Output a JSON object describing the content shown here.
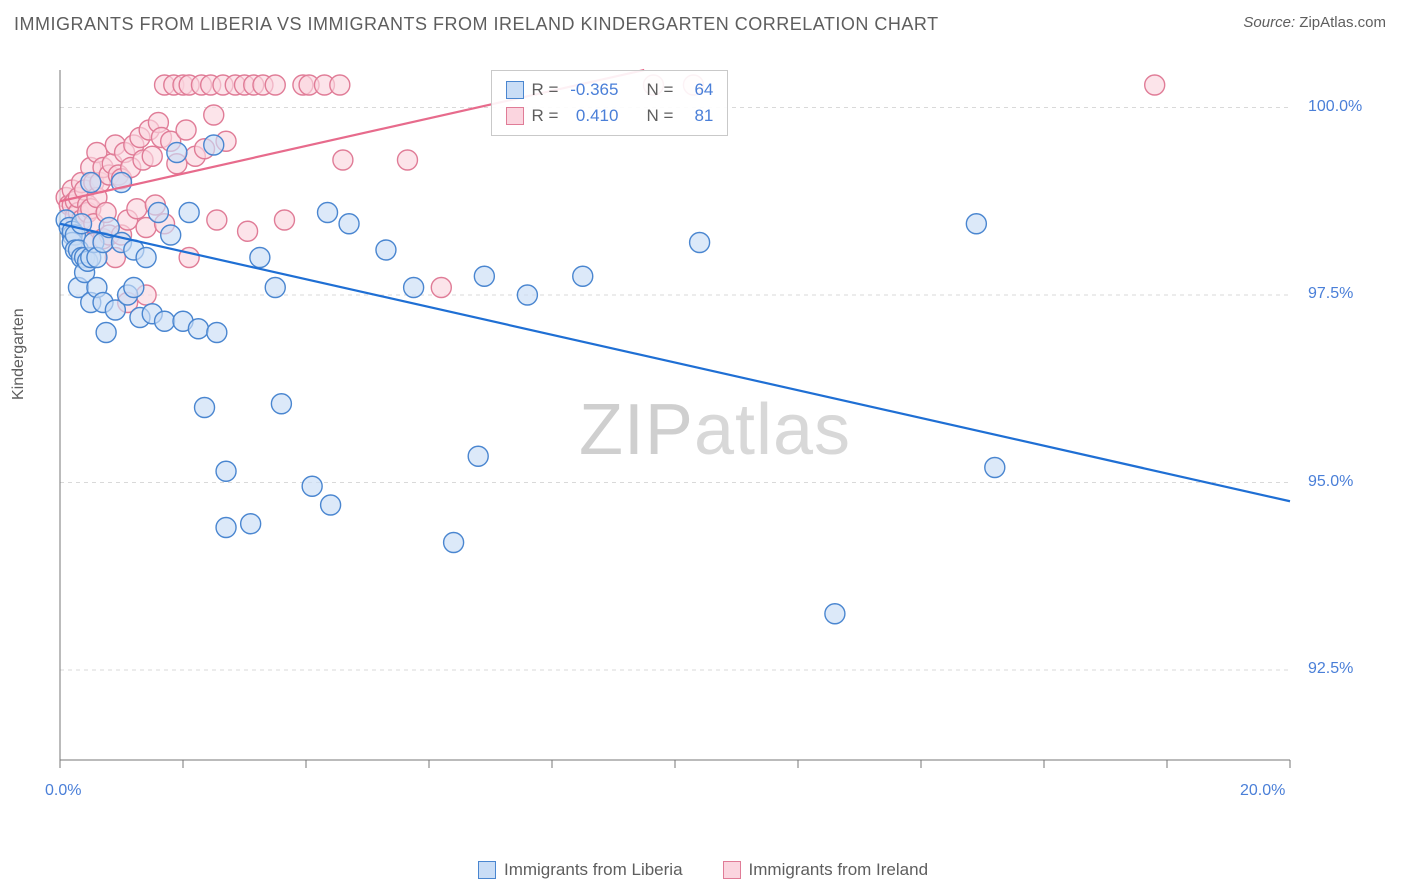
{
  "title": "IMMIGRANTS FROM LIBERIA VS IMMIGRANTS FROM IRELAND KINDERGARTEN CORRELATION CHART",
  "source_label": "Source:",
  "source_name": "ZipAtlas.com",
  "y_axis_label": "Kindergarten",
  "watermark": {
    "part1": "ZIP",
    "part2": "atlas"
  },
  "chart": {
    "type": "scatter",
    "background_color": "#ffffff",
    "grid_color": "#d9d9d9",
    "axis_color": "#777777",
    "tick_color": "#777777",
    "xlim": [
      0.0,
      20.0
    ],
    "ylim": [
      91.3,
      100.5
    ],
    "x_ticks": [
      0.0,
      2.0,
      4.0,
      6.0,
      8.0,
      10.0,
      12.0,
      14.0,
      16.0,
      18.0,
      20.0
    ],
    "x_tick_labels": {
      "0": "0.0%",
      "10": "20.0%"
    },
    "y_ticks": [
      92.5,
      95.0,
      97.5,
      100.0
    ],
    "y_tick_labels": [
      "92.5%",
      "95.0%",
      "97.5%",
      "100.0%"
    ],
    "marker_radius": 10,
    "marker_stroke_width": 1.4,
    "line_width": 2.2,
    "series": [
      {
        "name": "Immigrants from Liberia",
        "label": "Immigrants from Liberia",
        "color_fill": "#c9ddf6",
        "color_stroke": "#4a86d0",
        "line_color": "#1f6fd4",
        "R": "-0.365",
        "N": "64",
        "trend": {
          "x1": 0.0,
          "y1": 98.45,
          "x2": 20.0,
          "y2": 94.75
        },
        "points": [
          [
            0.1,
            98.5
          ],
          [
            0.15,
            98.4
          ],
          [
            0.2,
            98.3
          ],
          [
            0.2,
            98.35
          ],
          [
            0.2,
            98.2
          ],
          [
            0.25,
            98.3
          ],
          [
            0.25,
            98.1
          ],
          [
            0.3,
            98.1
          ],
          [
            0.3,
            97.6
          ],
          [
            0.35,
            98.45
          ],
          [
            0.35,
            98.0
          ],
          [
            0.4,
            98.0
          ],
          [
            0.4,
            97.8
          ],
          [
            0.45,
            97.95
          ],
          [
            0.5,
            99.0
          ],
          [
            0.5,
            98.0
          ],
          [
            0.5,
            97.4
          ],
          [
            0.55,
            98.2
          ],
          [
            0.6,
            97.6
          ],
          [
            0.6,
            98.0
          ],
          [
            0.7,
            98.2
          ],
          [
            0.7,
            97.4
          ],
          [
            0.75,
            97.0
          ],
          [
            0.8,
            98.4
          ],
          [
            0.9,
            97.3
          ],
          [
            1.0,
            98.2
          ],
          [
            1.0,
            99.0
          ],
          [
            1.1,
            97.5
          ],
          [
            1.2,
            98.1
          ],
          [
            1.2,
            97.6
          ],
          [
            1.3,
            97.2
          ],
          [
            1.4,
            98.0
          ],
          [
            1.5,
            97.25
          ],
          [
            1.6,
            98.6
          ],
          [
            1.7,
            97.15
          ],
          [
            1.8,
            98.3
          ],
          [
            1.9,
            99.4
          ],
          [
            2.0,
            97.15
          ],
          [
            2.1,
            98.6
          ],
          [
            2.25,
            97.05
          ],
          [
            2.35,
            96.0
          ],
          [
            2.5,
            99.5
          ],
          [
            2.55,
            97.0
          ],
          [
            2.7,
            94.4
          ],
          [
            2.7,
            95.15
          ],
          [
            3.1,
            94.45
          ],
          [
            3.25,
            98.0
          ],
          [
            3.5,
            97.6
          ],
          [
            3.6,
            96.05
          ],
          [
            4.1,
            94.95
          ],
          [
            4.35,
            98.6
          ],
          [
            4.4,
            94.7
          ],
          [
            4.7,
            98.45
          ],
          [
            5.3,
            98.1
          ],
          [
            5.75,
            97.6
          ],
          [
            6.4,
            94.2
          ],
          [
            6.8,
            95.35
          ],
          [
            6.9,
            97.75
          ],
          [
            7.6,
            97.5
          ],
          [
            8.5,
            97.75
          ],
          [
            10.4,
            98.2
          ],
          [
            12.6,
            93.25
          ],
          [
            14.9,
            98.45
          ],
          [
            15.2,
            95.2
          ]
        ]
      },
      {
        "name": "Immigrants from Ireland",
        "label": "Immigrants from Ireland",
        "color_fill": "#fbd5df",
        "color_stroke": "#e07c97",
        "line_color": "#e76b8c",
        "R": "0.410",
        "N": "81",
        "trend": {
          "x1": 0.0,
          "y1": 98.75,
          "x2": 9.5,
          "y2": 100.5
        },
        "points": [
          [
            0.1,
            98.8
          ],
          [
            0.15,
            98.7
          ],
          [
            0.2,
            98.9
          ],
          [
            0.2,
            98.7
          ],
          [
            0.25,
            98.75
          ],
          [
            0.25,
            98.55
          ],
          [
            0.3,
            98.6
          ],
          [
            0.3,
            98.8
          ],
          [
            0.35,
            99.0
          ],
          [
            0.35,
            98.5
          ],
          [
            0.4,
            98.9
          ],
          [
            0.4,
            98.2
          ],
          [
            0.45,
            98.7
          ],
          [
            0.45,
            98.6
          ],
          [
            0.5,
            99.2
          ],
          [
            0.5,
            98.65
          ],
          [
            0.55,
            99.0
          ],
          [
            0.55,
            98.45
          ],
          [
            0.6,
            99.4
          ],
          [
            0.6,
            98.8
          ],
          [
            0.65,
            99.0
          ],
          [
            0.7,
            98.25
          ],
          [
            0.7,
            99.2
          ],
          [
            0.75,
            98.6
          ],
          [
            0.8,
            99.1
          ],
          [
            0.8,
            98.3
          ],
          [
            0.85,
            99.25
          ],
          [
            0.9,
            98.0
          ],
          [
            0.9,
            99.5
          ],
          [
            0.95,
            99.1
          ],
          [
            1.0,
            98.3
          ],
          [
            1.0,
            99.05
          ],
          [
            1.05,
            99.4
          ],
          [
            1.1,
            98.5
          ],
          [
            1.1,
            97.4
          ],
          [
            1.15,
            99.2
          ],
          [
            1.2,
            99.5
          ],
          [
            1.25,
            98.65
          ],
          [
            1.3,
            99.6
          ],
          [
            1.35,
            99.3
          ],
          [
            1.4,
            98.4
          ],
          [
            1.4,
            97.5
          ],
          [
            1.45,
            99.7
          ],
          [
            1.5,
            99.35
          ],
          [
            1.55,
            98.7
          ],
          [
            1.6,
            99.8
          ],
          [
            1.65,
            99.6
          ],
          [
            1.7,
            100.3
          ],
          [
            1.7,
            98.45
          ],
          [
            1.8,
            99.55
          ],
          [
            1.85,
            100.3
          ],
          [
            1.9,
            99.25
          ],
          [
            2.0,
            100.3
          ],
          [
            2.05,
            99.7
          ],
          [
            2.1,
            98.0
          ],
          [
            2.1,
            100.3
          ],
          [
            2.2,
            99.35
          ],
          [
            2.3,
            100.3
          ],
          [
            2.35,
            99.45
          ],
          [
            2.45,
            100.3
          ],
          [
            2.5,
            99.9
          ],
          [
            2.55,
            98.5
          ],
          [
            2.65,
            100.3
          ],
          [
            2.7,
            99.55
          ],
          [
            2.85,
            100.3
          ],
          [
            3.0,
            100.3
          ],
          [
            3.05,
            98.35
          ],
          [
            3.15,
            100.3
          ],
          [
            3.3,
            100.3
          ],
          [
            3.5,
            100.3
          ],
          [
            3.65,
            98.5
          ],
          [
            3.95,
            100.3
          ],
          [
            4.05,
            100.3
          ],
          [
            4.3,
            100.3
          ],
          [
            4.55,
            100.3
          ],
          [
            4.6,
            99.3
          ],
          [
            5.65,
            99.3
          ],
          [
            6.2,
            97.6
          ],
          [
            9.65,
            100.3
          ],
          [
            10.3,
            100.3
          ],
          [
            17.8,
            100.3
          ]
        ]
      }
    ]
  },
  "stats_box": {
    "R_label": "R =",
    "N_label": "N ="
  }
}
